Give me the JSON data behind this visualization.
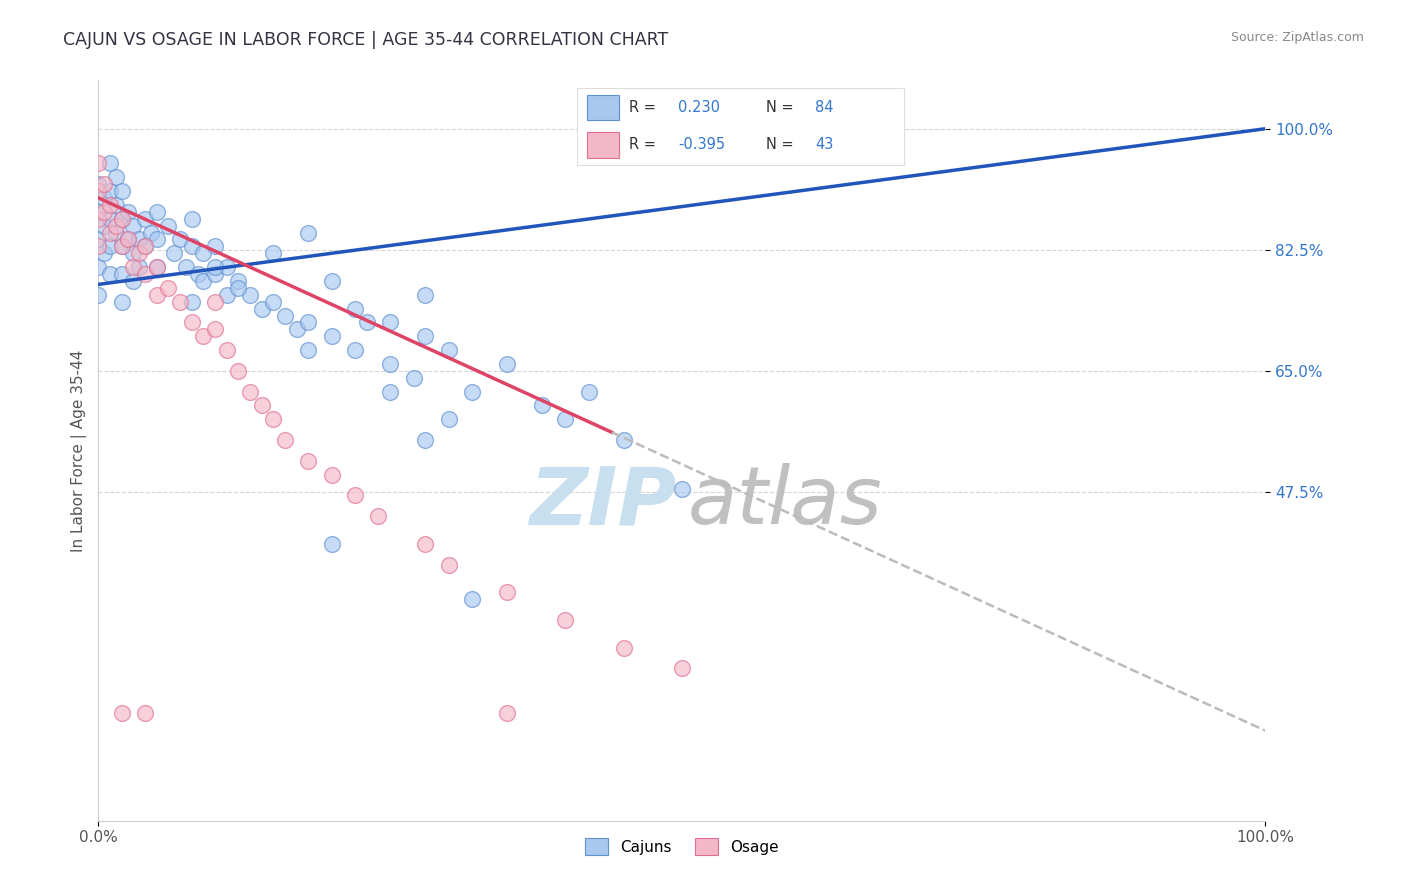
{
  "title": "CAJUN VS OSAGE IN LABOR FORCE | AGE 35-44 CORRELATION CHART",
  "source_text": "Source: ZipAtlas.com",
  "ylabel": "In Labor Force | Age 35-44",
  "xlim": [
    0.0,
    1.0
  ],
  "ylim": [
    0.0,
    1.07
  ],
  "ytick_positions": [
    0.475,
    0.65,
    0.825,
    1.0
  ],
  "ytick_labels": [
    "47.5%",
    "65.0%",
    "82.5%",
    "100.0%"
  ],
  "xtick_positions": [
    0.0,
    1.0
  ],
  "xtick_labels": [
    "0.0%",
    "100.0%"
  ],
  "grid_color": "#cccccc",
  "background_color": "#ffffff",
  "cajun_color": "#a8c8f0",
  "osage_color": "#f4b8c8",
  "cajun_edge_color": "#6090d0",
  "osage_edge_color": "#e07090",
  "regression_cajun_color": "#2255bb",
  "regression_osage_color": "#dd4466",
  "regression_osage_dashed_color": "#bbbbbb",
  "legend_text_color": "#3377cc",
  "legend_label_color": "#333333",
  "watermark_zip_color": "#c8dff0",
  "watermark_atlas_color": "#c0c0c0",
  "cajun_x": [
    0.0,
    0.0,
    0.0,
    0.0,
    0.0,
    0.005,
    0.005,
    0.005,
    0.01,
    0.01,
    0.01,
    0.01,
    0.01,
    0.015,
    0.015,
    0.015,
    0.02,
    0.02,
    0.02,
    0.02,
    0.02,
    0.025,
    0.025,
    0.03,
    0.03,
    0.03,
    0.035,
    0.035,
    0.04,
    0.04,
    0.045,
    0.05,
    0.05,
    0.05,
    0.06,
    0.065,
    0.07,
    0.075,
    0.08,
    0.08,
    0.085,
    0.09,
    0.09,
    0.1,
    0.1,
    0.11,
    0.11,
    0.12,
    0.13,
    0.14,
    0.15,
    0.16,
    0.17,
    0.18,
    0.18,
    0.2,
    0.22,
    0.23,
    0.25,
    0.27,
    0.28,
    0.3,
    0.32,
    0.35,
    0.38,
    0.4,
    0.42,
    0.45,
    0.5,
    0.08,
    0.1,
    0.12,
    0.15,
    0.18,
    0.2,
    0.22,
    0.25,
    0.28,
    0.2,
    0.28,
    0.32,
    0.25,
    0.3
  ],
  "cajun_y": [
    0.92,
    0.88,
    0.84,
    0.8,
    0.76,
    0.9,
    0.86,
    0.82,
    0.95,
    0.91,
    0.87,
    0.83,
    0.79,
    0.93,
    0.89,
    0.85,
    0.91,
    0.87,
    0.83,
    0.79,
    0.75,
    0.88,
    0.84,
    0.86,
    0.82,
    0.78,
    0.84,
    0.8,
    0.87,
    0.83,
    0.85,
    0.88,
    0.84,
    0.8,
    0.86,
    0.82,
    0.84,
    0.8,
    0.87,
    0.83,
    0.79,
    0.82,
    0.78,
    0.83,
    0.79,
    0.8,
    0.76,
    0.78,
    0.76,
    0.74,
    0.75,
    0.73,
    0.71,
    0.72,
    0.68,
    0.7,
    0.68,
    0.72,
    0.66,
    0.64,
    0.7,
    0.68,
    0.62,
    0.66,
    0.6,
    0.58,
    0.62,
    0.55,
    0.48,
    0.75,
    0.8,
    0.77,
    0.82,
    0.85,
    0.78,
    0.74,
    0.72,
    0.76,
    0.4,
    0.55,
    0.32,
    0.62,
    0.58
  ],
  "osage_x": [
    0.0,
    0.0,
    0.0,
    0.0,
    0.005,
    0.005,
    0.01,
    0.01,
    0.015,
    0.02,
    0.02,
    0.025,
    0.03,
    0.035,
    0.04,
    0.04,
    0.05,
    0.05,
    0.06,
    0.07,
    0.08,
    0.09,
    0.1,
    0.1,
    0.11,
    0.12,
    0.13,
    0.14,
    0.15,
    0.16,
    0.18,
    0.2,
    0.22,
    0.24,
    0.28,
    0.3,
    0.35,
    0.4,
    0.45,
    0.5,
    0.02,
    0.04,
    0.35
  ],
  "osage_y": [
    0.95,
    0.91,
    0.87,
    0.83,
    0.92,
    0.88,
    0.89,
    0.85,
    0.86,
    0.87,
    0.83,
    0.84,
    0.8,
    0.82,
    0.83,
    0.79,
    0.8,
    0.76,
    0.77,
    0.75,
    0.72,
    0.7,
    0.75,
    0.71,
    0.68,
    0.65,
    0.62,
    0.6,
    0.58,
    0.55,
    0.52,
    0.5,
    0.47,
    0.44,
    0.4,
    0.37,
    0.33,
    0.29,
    0.25,
    0.22,
    0.155,
    0.155,
    0.155
  ],
  "cajun_regression_x0": 0.0,
  "cajun_regression_y0": 0.775,
  "cajun_regression_x1": 1.0,
  "cajun_regression_y1": 1.0,
  "osage_regression_x0": 0.0,
  "osage_regression_y0": 0.9,
  "osage_regression_x1_solid": 0.44,
  "osage_regression_x1": 1.0,
  "osage_regression_y1": 0.13
}
